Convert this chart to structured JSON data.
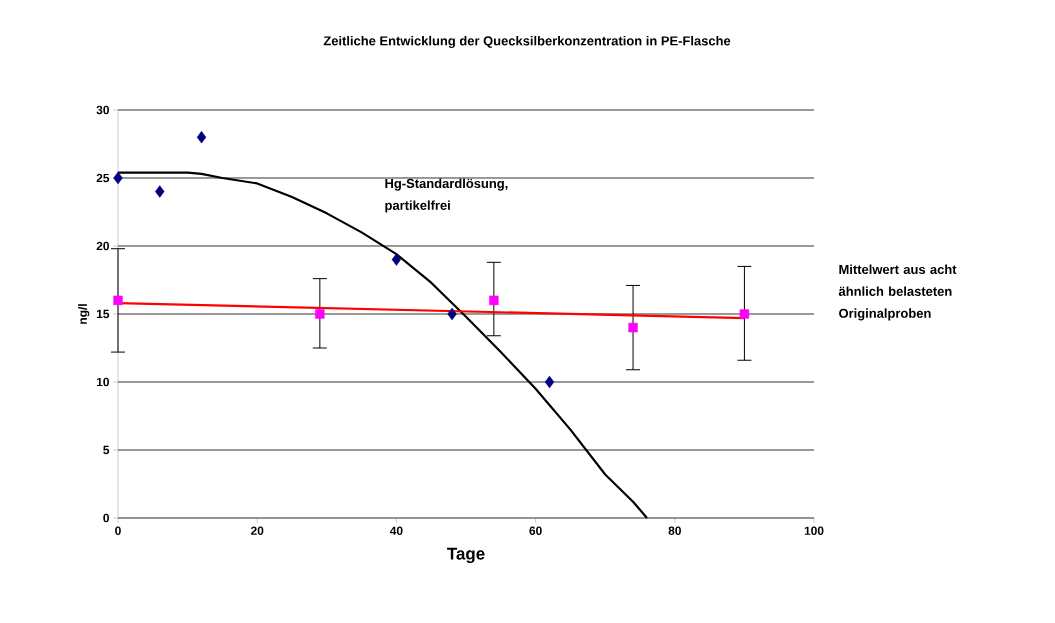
{
  "chart_data": {
    "type": "scatter",
    "title": "Zeitliche Entwicklung der Quecksilberkonzentration in PE-Flasche",
    "xlabel": "Tage",
    "ylabel": "ng/l",
    "xlim": [
      0,
      100
    ],
    "ylim": [
      0,
      30
    ],
    "xticks": [
      0,
      20,
      40,
      60,
      80,
      100
    ],
    "yticks": [
      0,
      5,
      10,
      15,
      20,
      25,
      30
    ],
    "grid": "y",
    "series": [
      {
        "marker": "diamond",
        "color": "#000080",
        "x": [
          0,
          6,
          12,
          40,
          48,
          62
        ],
        "values": [
          25,
          24,
          28,
          19,
          15,
          10
        ]
      },
      {
        "type": "line",
        "marker": "none",
        "color": "#000000",
        "x": [
          0,
          10,
          12,
          15,
          20,
          25,
          30,
          35,
          40,
          45,
          50,
          55,
          60,
          65,
          70,
          74,
          76
        ],
        "values": [
          25.4,
          25.4,
          25.3,
          25.0,
          24.6,
          23.6,
          22.4,
          21.0,
          19.4,
          17.3,
          14.8,
          12.2,
          9.5,
          6.5,
          3.2,
          1.2,
          0
        ]
      },
      {
        "marker": "square",
        "color": "#ff00ff",
        "x": [
          0,
          29,
          54,
          74,
          90
        ],
        "values": [
          16,
          15,
          16,
          14,
          15
        ],
        "errors": [
          [
            12.2,
            19.8
          ],
          [
            12.5,
            17.6
          ],
          [
            13.4,
            18.8
          ],
          [
            10.9,
            17.1
          ],
          [
            11.6,
            18.5
          ]
        ]
      },
      {
        "type": "line",
        "marker": "none",
        "color": "#ff0000",
        "x": [
          0,
          90
        ],
        "values": [
          15.8,
          14.7
        ]
      }
    ],
    "annotations": [
      "Hg-Standardlösung, partikelfrei",
      "Mittelwert aus acht ähnlich belasteten Originalproben"
    ]
  }
}
